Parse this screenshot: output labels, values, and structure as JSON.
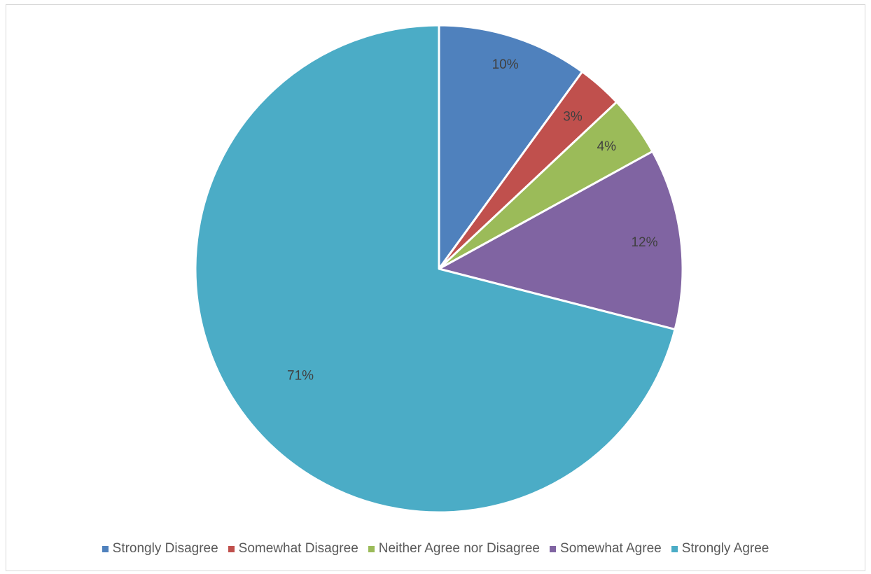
{
  "chart_data": {
    "type": "pie",
    "title": "",
    "start_angle_deg": 0,
    "direction": "clockwise",
    "slices": [
      {
        "label": "Strongly Disagree",
        "value": 10,
        "value_label": "10%",
        "color": "#4f81bd"
      },
      {
        "label": "Somewhat Disagree",
        "value": 3,
        "value_label": "3%",
        "color": "#c0504d"
      },
      {
        "label": "Neither Agree nor Disagree",
        "value": 4,
        "value_label": "4%",
        "color": "#9bbb59"
      },
      {
        "label": "Somewhat Agree",
        "value": 12,
        "value_label": "12%",
        "color": "#8064a2"
      },
      {
        "label": "Strongly Agree",
        "value": 71,
        "value_label": "71%",
        "color": "#4bacc6"
      }
    ],
    "legend_position": "bottom"
  }
}
